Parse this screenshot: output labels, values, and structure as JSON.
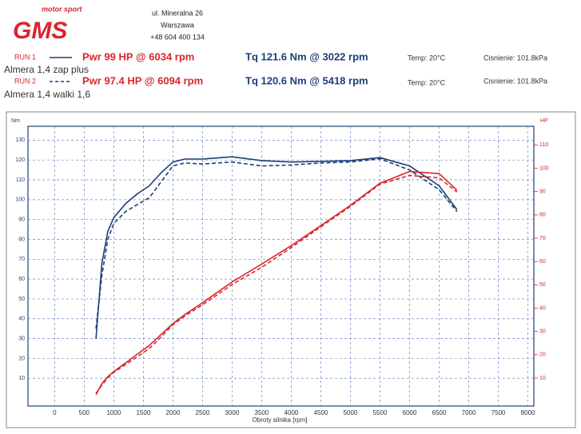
{
  "header": {
    "brand_tagline": "motor sport",
    "brand": "GMS",
    "address": [
      "ul. Mineralna 26",
      "Warszawa",
      "+48 604 400 134"
    ]
  },
  "runs": [
    {
      "label": "RUN 1",
      "power": "Pwr 99 HP @ 6034 rpm",
      "torque": "Tq 121.6 Nm @ 3022 rpm",
      "temp": "Temp: 20°C",
      "pressure": "Cisnienie: 101.8kPa",
      "car": "Almera 1,4 zap plus"
    },
    {
      "label": "RUN 2",
      "power": "Pwr 97.4 HP @ 6094 rpm",
      "torque": "Tq 120.6 Nm @ 5418 rpm",
      "temp": "Temp: 20°C",
      "pressure": "Cisnienie: 101.8kPa",
      "car": "Almera 1,4 walki 1,6"
    }
  ],
  "chart_data": {
    "type": "line",
    "xlabel": "Obroty silnika [rpm]",
    "ylabel": "Nm",
    "y2label": "HP",
    "x": [
      700,
      800,
      900,
      1000,
      1200,
      1400,
      1600,
      1800,
      2000,
      2200,
      2500,
      3000,
      3500,
      4000,
      4500,
      5000,
      5500,
      6000,
      6500,
      6800
    ],
    "series": [
      {
        "color": "#1c3f78",
        "dash": false,
        "values": [
          30,
          68,
          84,
          91,
          98,
          103,
          107,
          113.6,
          119,
          120.5,
          120.5,
          121.6,
          119.7,
          119,
          119.3,
          119.7,
          121.2,
          117,
          107,
          95
        ]
      },
      {
        "color": "#1c3f78",
        "dash": true,
        "values": [
          35,
          62,
          80,
          88,
          94,
          97.6,
          101,
          109,
          117,
          118.5,
          118,
          119,
          117,
          117.5,
          118.5,
          119,
          120.6,
          115,
          105,
          94
        ]
      },
      {
        "color": "#d8262c",
        "dash": false,
        "axis": "y2",
        "values": [
          2.9,
          7.6,
          10.6,
          12.8,
          16.5,
          20.3,
          24,
          28.7,
          33.4,
          37.2,
          42.3,
          51.2,
          58.9,
          66.8,
          75.4,
          84.1,
          93.6,
          98.6,
          97.7,
          90.6
        ]
      },
      {
        "color": "#d8262c",
        "dash": true,
        "axis": "y2",
        "values": [
          3.4,
          7,
          10.1,
          12.4,
          15.8,
          19.2,
          22.7,
          27.6,
          32.9,
          36.6,
          41.4,
          50.1,
          57.5,
          66,
          74.9,
          83.6,
          93.2,
          96.9,
          95.9,
          89.8
        ]
      }
    ],
    "xlim": [
      -450,
      8100
    ],
    "xticks": [
      0,
      500,
      1000,
      1500,
      2000,
      2500,
      3000,
      3500,
      4000,
      4500,
      5000,
      5500,
      6000,
      6500,
      7000,
      7500,
      8000
    ],
    "ylim": [
      -4,
      137
    ],
    "yticks": [
      10,
      20,
      30,
      40,
      50,
      60,
      70,
      80,
      90,
      100,
      110,
      120,
      130
    ],
    "y2lim": [
      -2,
      118
    ],
    "y2ticks": [
      10,
      20,
      30,
      40,
      50,
      60,
      70,
      80,
      90,
      100,
      110
    ],
    "grid": true,
    "grid_color": "#6f86c4"
  }
}
